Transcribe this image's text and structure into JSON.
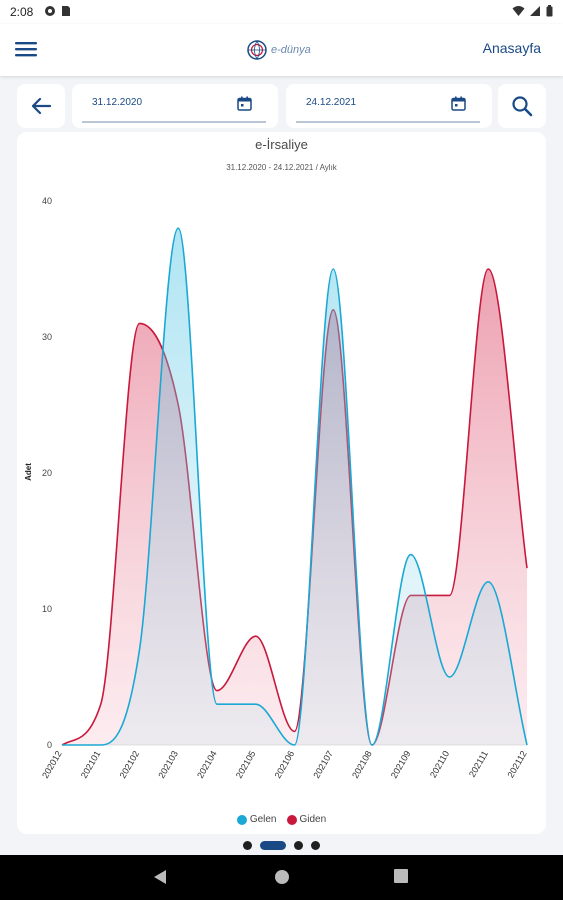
{
  "status_bar": {
    "time": "2:08",
    "left_icons": [
      "nfc-icon",
      "sim-icon"
    ],
    "right_icons": [
      "wifi-icon",
      "signal-icon",
      "battery-icon"
    ]
  },
  "app_bar": {
    "logo_text": "e-dünya",
    "home_link": "Anasayfa"
  },
  "filters": {
    "start_date": "31.12.2020",
    "end_date": "24.12.2021"
  },
  "colors": {
    "accent": "#1a4a86",
    "gelen": "#1aa8d4",
    "giden": "#c8183b"
  },
  "chart_data": {
    "type": "area",
    "title": "e-İrsaliye",
    "subtitle": "31.12.2020 - 24.12.2021 / Aylık",
    "ylabel": "Adet",
    "xlabel": "",
    "ylim": [
      0,
      40
    ],
    "yticks": [
      0,
      10,
      20,
      30,
      40
    ],
    "categories": [
      "202012",
      "202101",
      "202102",
      "202103",
      "202104",
      "202105",
      "202106",
      "202107",
      "202108",
      "202109",
      "202110",
      "202111",
      "202112"
    ],
    "series": [
      {
        "name": "Gelen",
        "color": "#1aa8d4",
        "values": [
          0,
          0,
          7,
          38,
          3,
          3,
          0,
          35,
          0,
          14,
          5,
          12,
          0
        ]
      },
      {
        "name": "Giden",
        "color": "#c8183b",
        "values": [
          0,
          3,
          31,
          25,
          4,
          8,
          1,
          32,
          0,
          11,
          11,
          35,
          13
        ]
      }
    ],
    "grid": false,
    "legend": "bottom"
  },
  "pager": {
    "count": 4,
    "active_index": 1
  },
  "nav_bar": {
    "buttons": [
      "back-nav-icon",
      "home-nav-icon",
      "recents-nav-icon"
    ]
  }
}
